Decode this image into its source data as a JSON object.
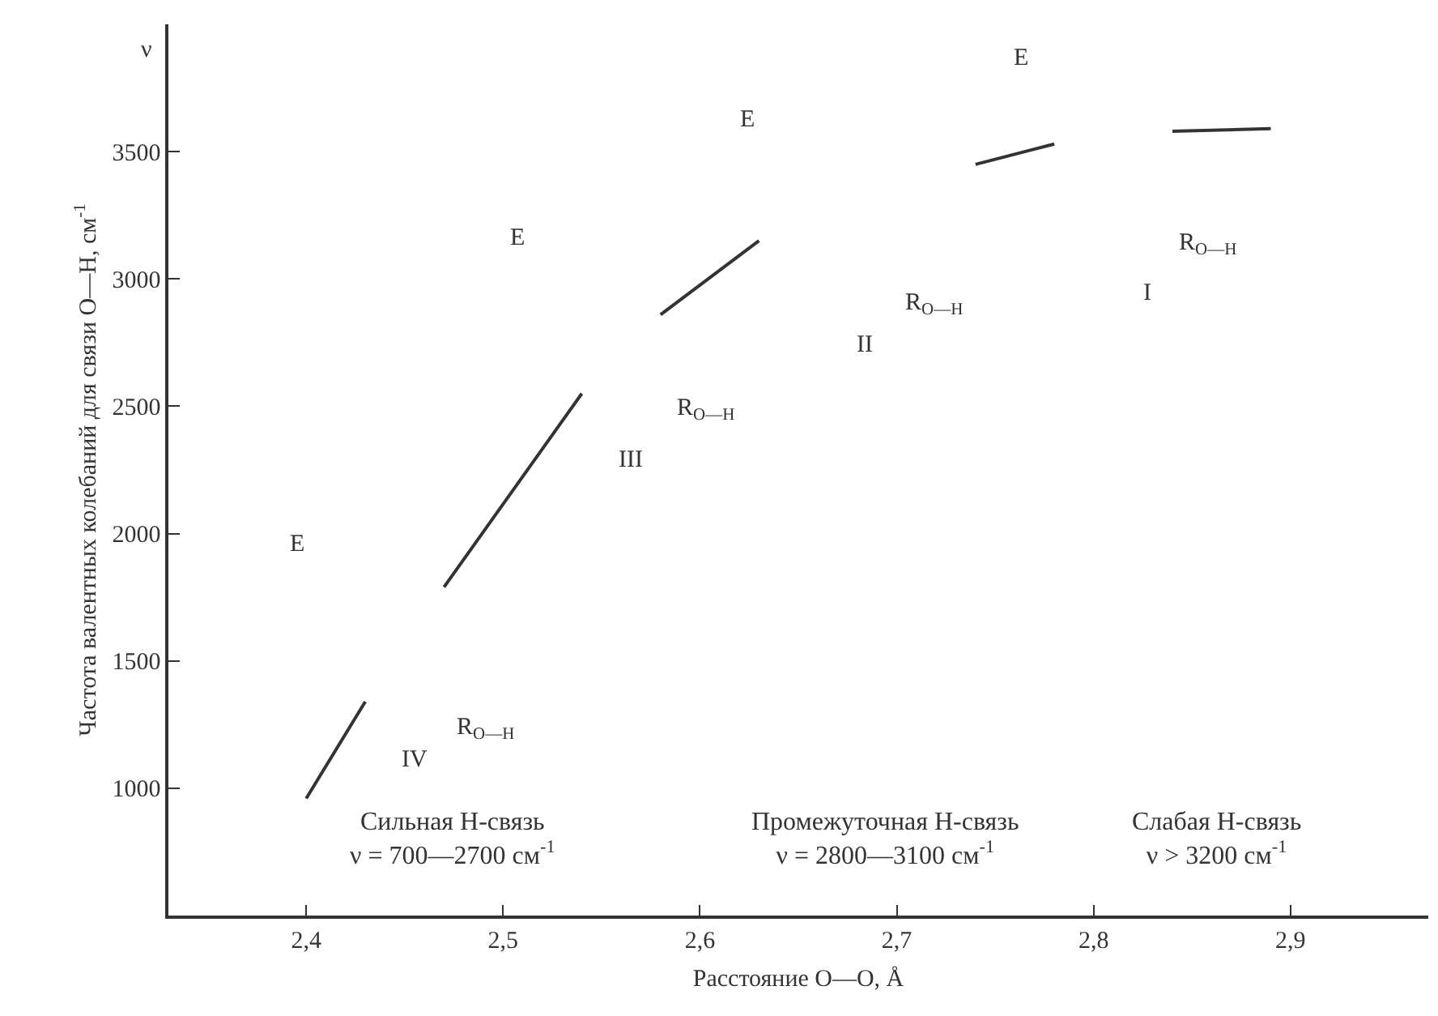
{
  "chart_data": {
    "type": "line",
    "xlabel": "Расстояние O—O, Å",
    "ylabel": "Частота валентных колебаний для связи O—H, см$^{-1}$",
    "x": [
      2.4,
      2.43,
      null,
      2.47,
      2.54,
      null,
      2.58,
      2.63,
      null,
      2.74,
      2.78,
      null,
      2.84,
      2.89
    ],
    "series": [
      {
        "color": "#333333",
        "values": [
          960,
          1340,
          null,
          1790,
          2550,
          null,
          2860,
          3150,
          null,
          3450,
          3530,
          null,
          3580,
          3590
        ]
      }
    ],
    "xlim": [
      2.33,
      2.97
    ],
    "ylim": [
      500,
      4000
    ],
    "xticks": [
      {
        "value": 2.4,
        "label": "2,4"
      },
      {
        "value": 2.5,
        "label": "2,5"
      },
      {
        "value": 2.6,
        "label": "2,6"
      },
      {
        "value": 2.7,
        "label": "2,7"
      },
      {
        "value": 2.8,
        "label": "2,8"
      },
      {
        "value": 2.9,
        "label": "2,9"
      }
    ],
    "yticks": [
      1000,
      1500,
      2000,
      2500,
      3000,
      3500
    ],
    "line_style": "solid",
    "annotations": [
      "ν",
      "E",
      "E",
      "E",
      "E",
      "R$_{O—H}$",
      "R$_{O—H}$",
      "R$_{O—H}$",
      "R$_{O—H}$",
      "I",
      "II",
      "III",
      "IV",
      "Сильная Н-связь\nν = 700—2700 см$^{-1}$",
      "Промежуточная Н-связь\nν = 2800—3100 см$^{-1}$",
      "Слабая Н-связь\nν > 3200 см$^{-1}$"
    ]
  }
}
